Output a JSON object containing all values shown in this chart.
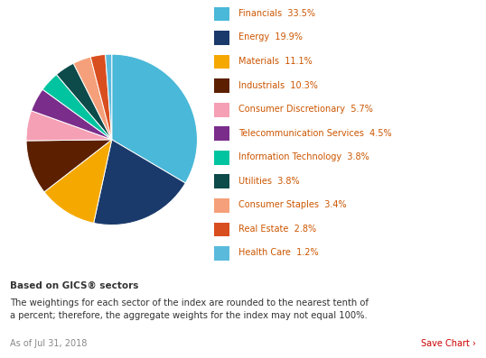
{
  "sectors": [
    {
      "label": "Financials",
      "pct": 33.5,
      "color": "#4ab8d8"
    },
    {
      "label": "Energy",
      "pct": 19.9,
      "color": "#1a3a6b"
    },
    {
      "label": "Materials",
      "pct": 11.1,
      "color": "#f5a800"
    },
    {
      "label": "Industrials",
      "pct": 10.3,
      "color": "#5c2000"
    },
    {
      "label": "Consumer Discretionary",
      "pct": 5.7,
      "color": "#f5a0b5"
    },
    {
      "label": "Telecommunication Services",
      "pct": 4.5,
      "color": "#7b2d8b"
    },
    {
      "label": "Information Technology",
      "pct": 3.8,
      "color": "#00c4a0"
    },
    {
      "label": "Utilities",
      "pct": 3.8,
      "color": "#0d4a4a"
    },
    {
      "label": "Consumer Staples",
      "pct": 3.4,
      "color": "#f5a07a"
    },
    {
      "label": "Real Estate",
      "pct": 2.8,
      "color": "#d94e1f"
    },
    {
      "label": "Health Care",
      "pct": 1.2,
      "color": "#5abadc"
    }
  ],
  "legend_text_color": "#cc5500",
  "footnote_bold": "Based on GICS® sectors",
  "footnote_body": "The weightings for each sector of the index are rounded to the nearest tenth of\na percent; therefore, the aggregate weights for the index may not equal 100%.",
  "date_text": "As of Jul 31, 2018",
  "save_text": "Save Chart ›",
  "date_color": "#888888",
  "save_color": "#cc0000",
  "footnote_color": "#333333",
  "bg_color": "#ffffff",
  "startangle": 90,
  "fig_width": 5.38,
  "fig_height": 3.97
}
